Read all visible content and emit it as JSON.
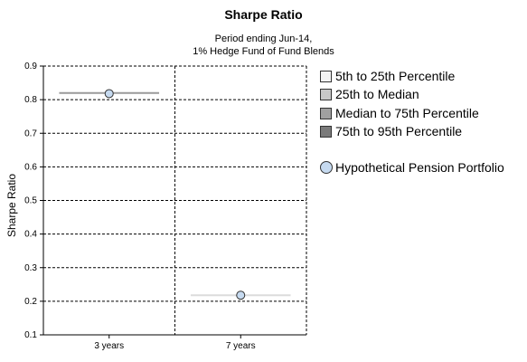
{
  "chart_data": {
    "type": "box",
    "title": "Sharpe Ratio",
    "subtitle": [
      "Period ending Jun-14,",
      "1% Hedge Fund of Fund Blends"
    ],
    "xlabel": "",
    "ylabel": "Sharpe Ratio",
    "ylim": [
      0.1,
      0.9
    ],
    "yticks": [
      "0.1",
      "0.2",
      "0.3",
      "0.4",
      "0.5",
      "0.6",
      "0.7",
      "0.8",
      "0.9"
    ],
    "categories": [
      "3 years",
      "7 years"
    ],
    "grid": true,
    "legend_position": "right",
    "percentile_bands": [
      {
        "name": "5th to 25th Percentile",
        "color": "#f2f2f2"
      },
      {
        "name": "25th to Median",
        "color": "#c8c8c8"
      },
      {
        "name": "Median to 75th Percentile",
        "color": "#a0a0a0"
      },
      {
        "name": "75th to 95th Percentile",
        "color": "#7a7a7a"
      }
    ],
    "percentile_lines": [
      {
        "category": "3 years",
        "value": 0.82,
        "color": "#9a9a9a"
      },
      {
        "category": "7 years",
        "value": 0.218,
        "color": "#dcdcdc"
      }
    ],
    "series": [
      {
        "name": "Hypothetical Pension Portfolio",
        "marker_color": "#c6daf0",
        "values": [
          0.818,
          0.218
        ]
      }
    ]
  }
}
